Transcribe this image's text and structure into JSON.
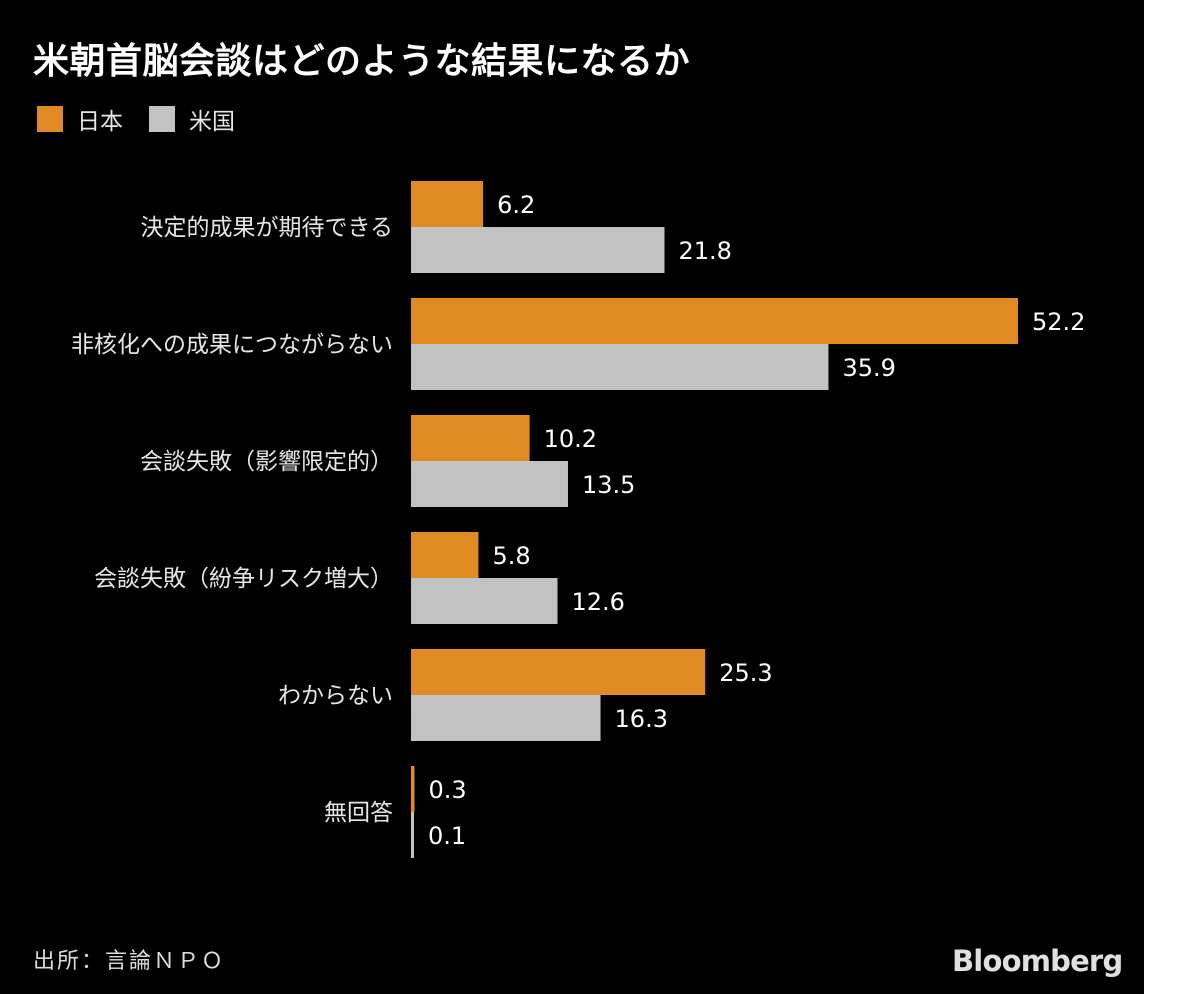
{
  "chart_data": {
    "type": "bar",
    "orientation": "horizontal",
    "title": "米朝首脳会談はどのような結果になるか",
    "categories": [
      "決定的成果が期待できる",
      "非核化への成果につながらない",
      "会談失敗（影響限定的）",
      "会談失敗（紛争リスク増大）",
      "わからない",
      "無回答"
    ],
    "series": [
      {
        "name": "日本",
        "color": "#e08a24",
        "values": [
          6.2,
          52.2,
          10.2,
          5.8,
          25.3,
          0.3
        ],
        "labels": [
          "6.2",
          "52.2",
          "10.2",
          "5.8",
          "25.3",
          "0.3"
        ]
      },
      {
        "name": "米国",
        "color": "#c2c2c2",
        "values": [
          21.8,
          35.9,
          13.5,
          12.6,
          16.3,
          0.1
        ],
        "labels": [
          "21.8",
          "35.9",
          "13.5",
          "12.6",
          "16.3",
          "0.1"
        ]
      }
    ],
    "xlim": [
      0,
      52.2
    ],
    "xlabel": "",
    "ylabel": "",
    "legend": "top-left",
    "grid": false
  },
  "source": "出所：言論ＮＰＯ",
  "brand": "Bloomberg",
  "colors": {
    "background": "#000000",
    "text": "#ffffff"
  }
}
